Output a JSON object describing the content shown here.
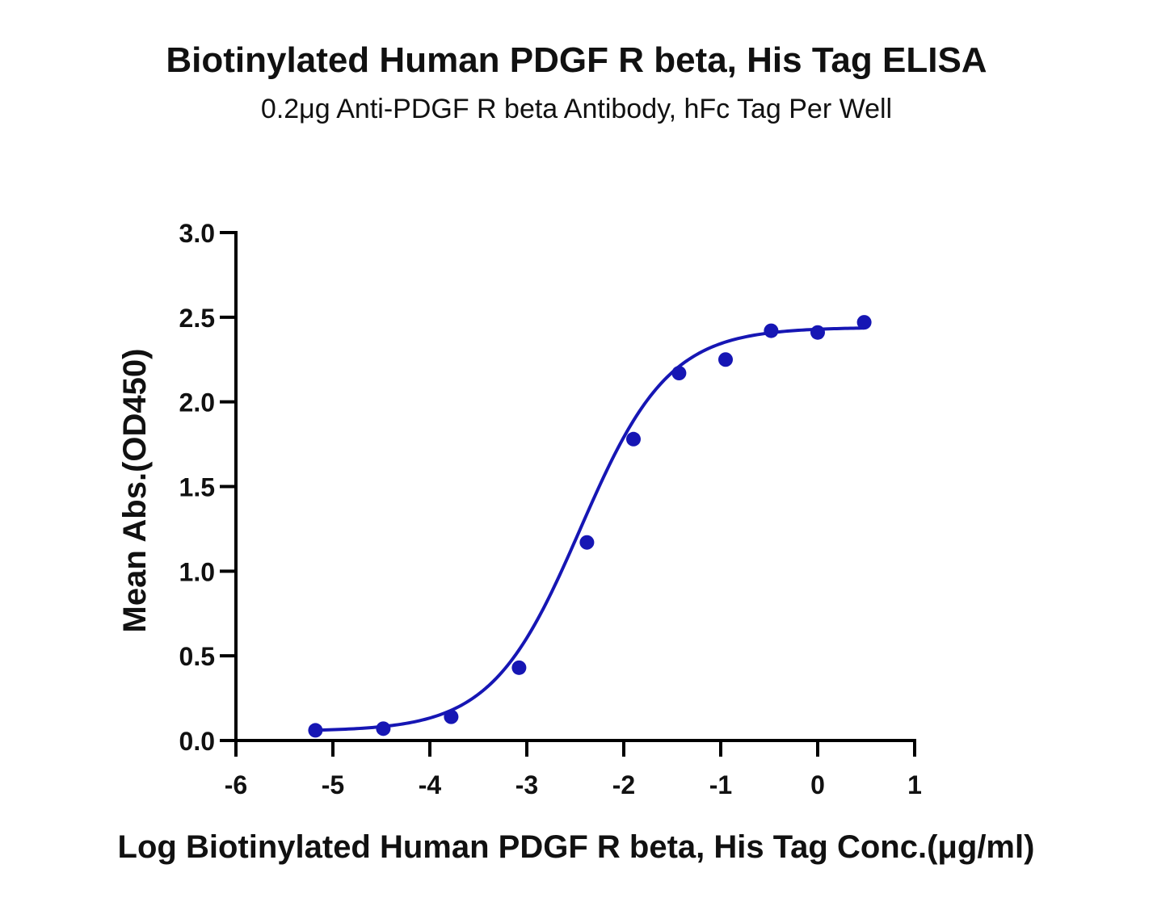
{
  "chart_data": {
    "type": "scatter",
    "title": "Biotinylated Human PDGF R beta, His Tag ELISA",
    "subtitle": "0.2μg Anti-PDGF R beta Antibody, hFc Tag Per Well",
    "xlabel": "Log Biotinylated Human PDGF R beta, His Tag Conc.(μg/ml)",
    "ylabel": "Mean Abs.(OD450)",
    "xlim": [
      -6,
      1
    ],
    "ylim": [
      0,
      3.0
    ],
    "x_ticks": [
      "-6",
      "-5",
      "-4",
      "-3",
      "-2",
      "-1",
      "0",
      "1"
    ],
    "y_ticks": [
      "0.0",
      "0.5",
      "1.0",
      "1.5",
      "2.0",
      "2.5",
      "3.0"
    ],
    "grid": false,
    "series": [
      {
        "x": [
          -5.18,
          -4.48,
          -3.78,
          -3.08,
          -2.38,
          -1.9,
          -1.43,
          -0.95,
          -0.48,
          0.0,
          0.48
        ],
        "y": [
          0.06,
          0.07,
          0.14,
          0.43,
          1.17,
          1.78,
          2.17,
          2.25,
          2.42,
          2.41,
          2.47
        ],
        "color": "#1616b4",
        "fit": "4PL sigmoid curve"
      }
    ]
  }
}
